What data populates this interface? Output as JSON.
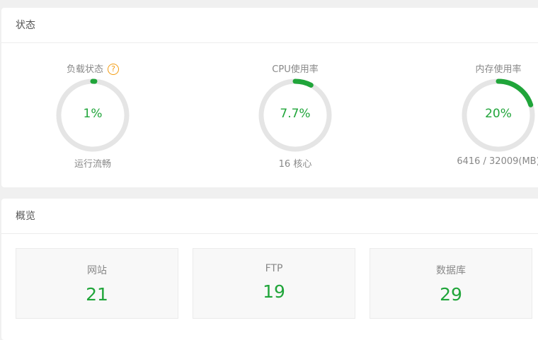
{
  "status": {
    "title": "状态",
    "gauges": [
      {
        "title": "负载状态",
        "percent": 1,
        "value": "1%",
        "sub": "运行流畅",
        "help_icon": "question-circle-icon"
      },
      {
        "title": "CPU使用率",
        "percent": 7.7,
        "value": "7.7%",
        "sub": "16 核心"
      },
      {
        "title": "内存使用率",
        "percent": 20,
        "value": "20%",
        "sub": "6416 / 32009(MB)"
      }
    ]
  },
  "overview": {
    "title": "概览",
    "boxes": [
      {
        "label": "网站",
        "value": "21"
      },
      {
        "label": "FTP",
        "value": "19"
      },
      {
        "label": "数据库",
        "value": "29"
      }
    ]
  },
  "colors": {
    "accent": "#20a53a",
    "track": "#e5e5e5",
    "help": "#f39c12"
  }
}
